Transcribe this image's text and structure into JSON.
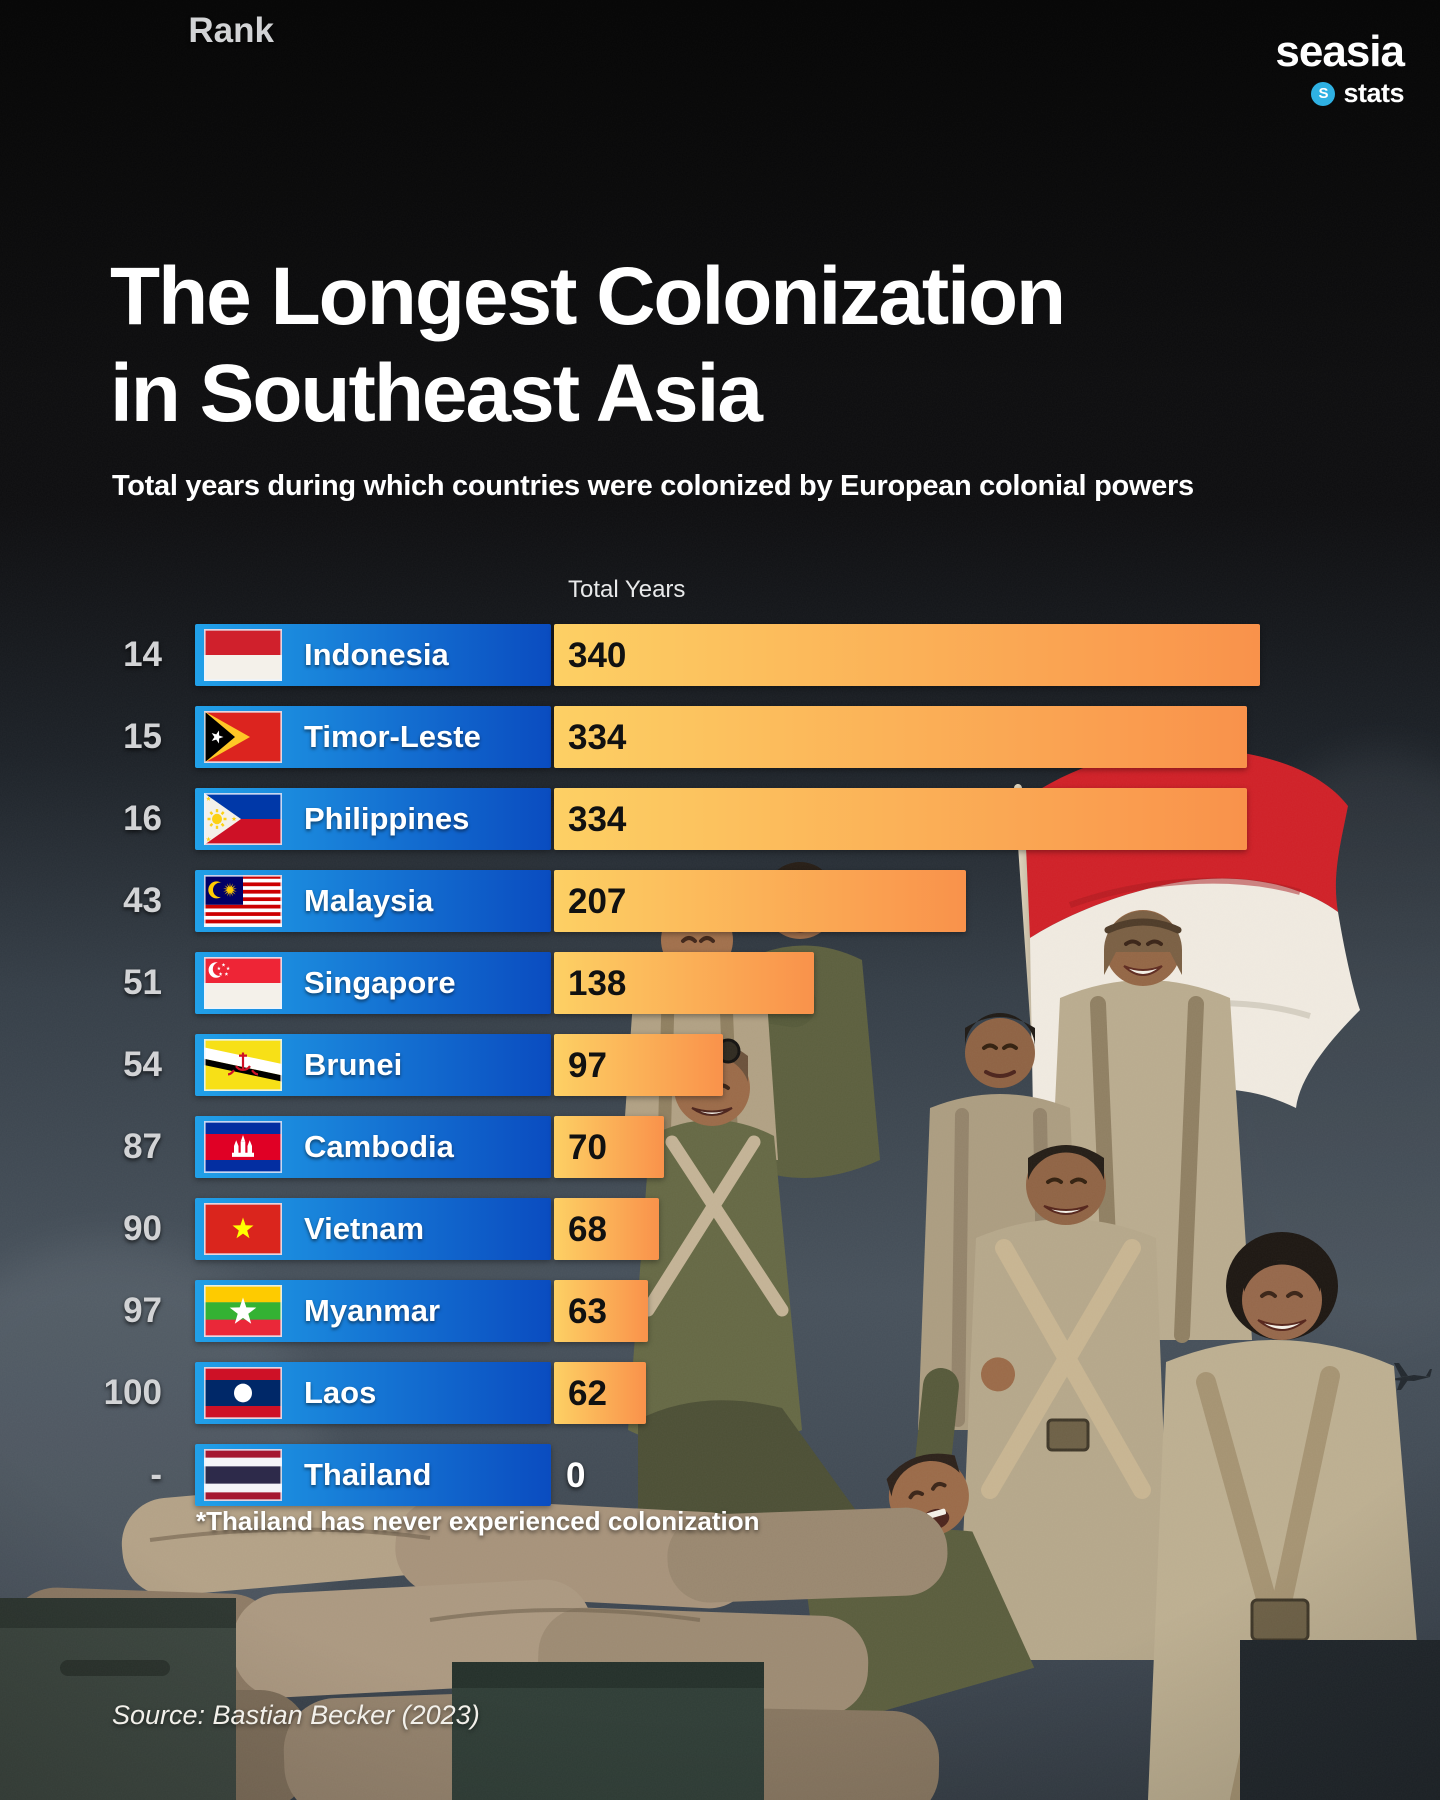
{
  "brand": {
    "name": "seasia",
    "sub": "stats",
    "icon": "seasia-s-icon",
    "accent": "#2fb1e3"
  },
  "title": {
    "line1": "The Longest Colonization",
    "line2": "in Southeast Asia"
  },
  "subtitle": "Total years during which countries were colonized by European colonial powers",
  "columns": {
    "rank": "Rank",
    "total_years": "Total Years"
  },
  "footnote": "*Thailand has never experienced colonization",
  "source": "Source: Bastian Becker (2023)",
  "colors": {
    "label_bar_start": "#21a0e8",
    "label_bar_end": "#0a4cc0",
    "value_bar_start": "#fdd064",
    "value_bar_end": "#f9924b",
    "rank_text": "#d2d3d5",
    "value_text": "#111111",
    "zero_value_text": "#ffffff"
  },
  "chart_data": {
    "type": "bar",
    "title": "The Longest Colonization in Southeast Asia",
    "subtitle": "Total years during which countries were colonized by European colonial powers",
    "xlabel": "Total Years",
    "ylabel": "",
    "xlim": [
      0,
      340
    ],
    "grid": false,
    "legend": false,
    "categories": [
      "Indonesia",
      "Timor-Leste",
      "Philippines",
      "Malaysia",
      "Singapore",
      "Brunei",
      "Cambodia",
      "Vietnam",
      "Myanmar",
      "Laos",
      "Thailand"
    ],
    "values": [
      340,
      334,
      334,
      207,
      138,
      97,
      70,
      68,
      63,
      62,
      0
    ],
    "rows": [
      {
        "rank": "14",
        "country": "Indonesia",
        "flag": "indonesia-flag",
        "years": 340
      },
      {
        "rank": "15",
        "country": "Timor-Leste",
        "flag": "timor-leste-flag",
        "years": 334
      },
      {
        "rank": "16",
        "country": "Philippines",
        "flag": "philippines-flag",
        "years": 334
      },
      {
        "rank": "43",
        "country": "Malaysia",
        "flag": "malaysia-flag",
        "years": 207
      },
      {
        "rank": "51",
        "country": "Singapore",
        "flag": "singapore-flag",
        "years": 138
      },
      {
        "rank": "54",
        "country": "Brunei",
        "flag": "brunei-flag",
        "years": 97
      },
      {
        "rank": "87",
        "country": "Cambodia",
        "flag": "cambodia-flag",
        "years": 70
      },
      {
        "rank": "90",
        "country": "Vietnam",
        "flag": "vietnam-flag",
        "years": 68
      },
      {
        "rank": "97",
        "country": "Myanmar",
        "flag": "myanmar-flag",
        "years": 63
      },
      {
        "rank": "100",
        "country": "Laos",
        "flag": "laos-flag",
        "years": 62
      },
      {
        "rank": "-",
        "country": "Thailand",
        "flag": "thailand-flag",
        "years": 0
      }
    ]
  }
}
